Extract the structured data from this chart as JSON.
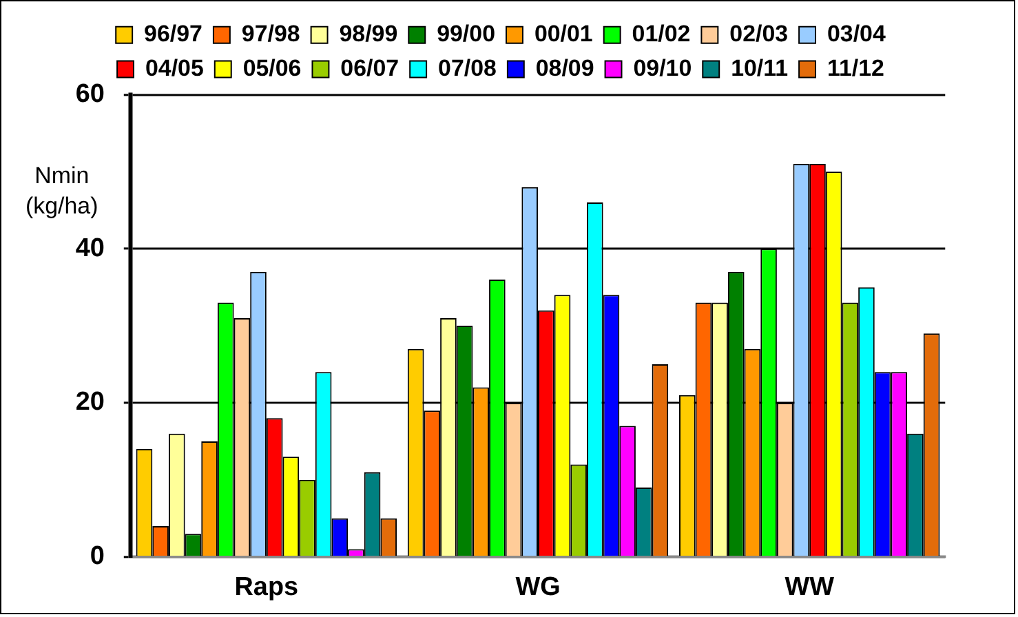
{
  "chart_data": {
    "type": "bar",
    "ylabel": "Nmin (kg/ha)",
    "categories": [
      "Raps",
      "WG",
      "WW"
    ],
    "ylim": [
      0,
      60
    ],
    "yticks": [
      0,
      20,
      40,
      60
    ],
    "grid": "y",
    "legend": "top",
    "series": [
      {
        "name": "96/97",
        "color": "#ffcc00",
        "values": [
          14,
          27,
          21
        ]
      },
      {
        "name": "97/98",
        "color": "#ff6600",
        "values": [
          4,
          19,
          33
        ]
      },
      {
        "name": "98/99",
        "color": "#ffff99",
        "values": [
          16,
          31,
          33
        ]
      },
      {
        "name": "99/00",
        "color": "#008000",
        "values": [
          3,
          30,
          37
        ]
      },
      {
        "name": "00/01",
        "color": "#ff9900",
        "values": [
          15,
          22,
          27
        ]
      },
      {
        "name": "01/02",
        "color": "#00ff00",
        "values": [
          33,
          36,
          40
        ]
      },
      {
        "name": "02/03",
        "color": "#ffcc99",
        "values": [
          31,
          20,
          20
        ]
      },
      {
        "name": "03/04",
        "color": "#99ccff",
        "values": [
          37,
          48,
          51
        ]
      },
      {
        "name": "04/05",
        "color": "#ff0000",
        "values": [
          18,
          32,
          51
        ]
      },
      {
        "name": "05/06",
        "color": "#ffff00",
        "values": [
          13,
          34,
          50
        ]
      },
      {
        "name": "06/07",
        "color": "#99cc00",
        "values": [
          10,
          12,
          33
        ]
      },
      {
        "name": "07/08",
        "color": "#00ffff",
        "values": [
          24,
          46,
          35
        ]
      },
      {
        "name": "08/09",
        "color": "#0000ff",
        "values": [
          5,
          34,
          24
        ]
      },
      {
        "name": "09/10",
        "color": "#ff00ff",
        "values": [
          1,
          17,
          24
        ]
      },
      {
        "name": "10/11",
        "color": "#008080",
        "values": [
          11,
          9,
          16
        ]
      },
      {
        "name": "11/12",
        "color": "#e36c0a",
        "values": [
          5,
          25,
          29
        ]
      }
    ]
  }
}
